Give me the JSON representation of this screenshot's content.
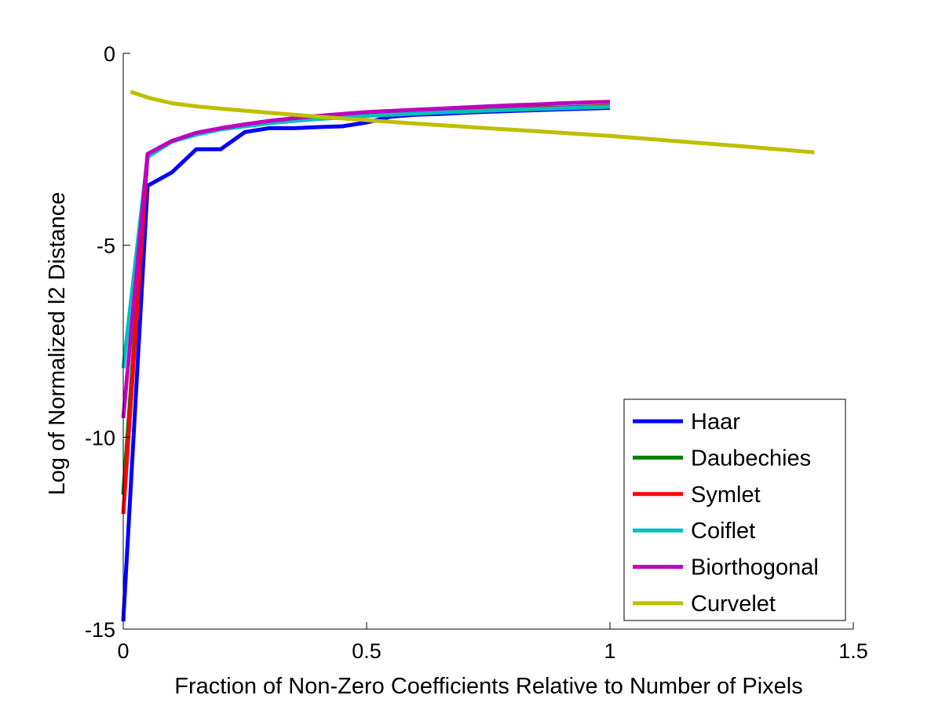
{
  "chart_data": {
    "type": "line",
    "title": "",
    "xlabel": "Fraction of Non-Zero Coefficients Relative to Number of Pixels",
    "ylabel": "Log of Normalized l2 Distance",
    "xlim": [
      0,
      1.5
    ],
    "ylim": [
      -15,
      0
    ],
    "xticks": [
      {
        "value": 0,
        "label": "0"
      },
      {
        "value": 0.5,
        "label": "0.5"
      },
      {
        "value": 1,
        "label": "1"
      },
      {
        "value": 1.5,
        "label": "1.5"
      }
    ],
    "yticks": [
      {
        "value": 0,
        "label": "0"
      },
      {
        "value": -5,
        "label": "-5"
      },
      {
        "value": -10,
        "label": "-10"
      },
      {
        "value": -15,
        "label": "-15"
      }
    ],
    "grid": false,
    "legend": "bottom-right",
    "series": [
      {
        "name": "Haar",
        "color": "#0000ff",
        "x": [
          0,
          0.05,
          0.1,
          0.15,
          0.2,
          0.25,
          0.3,
          0.35,
          0.4,
          0.45,
          0.5,
          0.55,
          0.6,
          0.65,
          0.7,
          0.75,
          0.8,
          0.85,
          0.9,
          0.95,
          1.0
        ],
        "y": [
          -14.8,
          -3.45,
          -3.1,
          -2.5,
          -2.5,
          -2.05,
          -1.95,
          -1.95,
          -1.92,
          -1.9,
          -1.8,
          -1.65,
          -1.6,
          -1.58,
          -1.55,
          -1.52,
          -1.5,
          -1.48,
          -1.46,
          -1.44,
          -1.42
        ]
      },
      {
        "name": "Daubechies",
        "color": "#008000",
        "x": [
          0,
          0.05,
          0.1,
          0.15,
          0.2,
          0.25,
          0.3,
          0.35,
          0.4,
          0.45,
          0.5,
          0.55,
          0.6,
          0.65,
          0.7,
          0.75,
          0.8,
          0.85,
          0.9,
          0.95,
          1.0
        ],
        "y": [
          -11.5,
          -2.65,
          -2.3,
          -2.1,
          -1.97,
          -1.87,
          -1.8,
          -1.74,
          -1.69,
          -1.65,
          -1.61,
          -1.58,
          -1.55,
          -1.52,
          -1.5,
          -1.47,
          -1.45,
          -1.43,
          -1.41,
          -1.39,
          -1.37
        ]
      },
      {
        "name": "Symlet",
        "color": "#ff0000",
        "x": [
          0,
          0.05,
          0.1,
          0.15,
          0.2,
          0.25,
          0.3,
          0.35,
          0.4,
          0.45,
          0.5,
          0.55,
          0.6,
          0.65,
          0.7,
          0.75,
          0.8,
          0.85,
          0.9,
          0.95,
          1.0
        ],
        "y": [
          -12.0,
          -2.65,
          -2.3,
          -2.1,
          -1.97,
          -1.87,
          -1.8,
          -1.74,
          -1.69,
          -1.65,
          -1.62,
          -1.59,
          -1.56,
          -1.53,
          -1.51,
          -1.48,
          -1.46,
          -1.44,
          -1.42,
          -1.4,
          -1.38
        ]
      },
      {
        "name": "Coiflet",
        "color": "#00bfbf",
        "x": [
          0,
          0.05,
          0.1,
          0.15,
          0.2,
          0.25,
          0.3,
          0.35,
          0.4,
          0.45,
          0.5,
          0.55,
          0.6,
          0.65,
          0.7,
          0.75,
          0.8,
          0.85,
          0.9,
          0.95,
          1.0
        ],
        "y": [
          -8.2,
          -2.7,
          -2.3,
          -2.12,
          -1.98,
          -1.9,
          -1.82,
          -1.76,
          -1.71,
          -1.67,
          -1.63,
          -1.6,
          -1.57,
          -1.54,
          -1.52,
          -1.49,
          -1.47,
          -1.45,
          -1.43,
          -1.41,
          -1.39
        ]
      },
      {
        "name": "Biorthogonal",
        "color": "#bf00bf",
        "x": [
          0,
          0.05,
          0.1,
          0.15,
          0.2,
          0.25,
          0.3,
          0.35,
          0.4,
          0.45,
          0.5,
          0.55,
          0.6,
          0.65,
          0.7,
          0.75,
          0.8,
          0.85,
          0.9,
          0.95,
          1.0
        ],
        "y": [
          -9.5,
          -2.62,
          -2.28,
          -2.07,
          -1.95,
          -1.85,
          -1.76,
          -1.69,
          -1.63,
          -1.58,
          -1.53,
          -1.5,
          -1.47,
          -1.44,
          -1.41,
          -1.38,
          -1.35,
          -1.33,
          -1.3,
          -1.28,
          -1.26
        ]
      },
      {
        "name": "Curvelet",
        "color": "#bfbf00",
        "x": [
          0.015,
          0.05,
          0.1,
          0.15,
          0.2,
          0.3,
          0.4,
          0.5,
          0.6,
          0.7,
          0.8,
          0.9,
          1.0,
          1.1,
          1.2,
          1.3,
          1.42
        ],
        "y": [
          -1.0,
          -1.15,
          -1.3,
          -1.38,
          -1.44,
          -1.55,
          -1.65,
          -1.74,
          -1.83,
          -1.91,
          -1.99,
          -2.07,
          -2.15,
          -2.25,
          -2.35,
          -2.45,
          -2.58
        ]
      }
    ]
  }
}
